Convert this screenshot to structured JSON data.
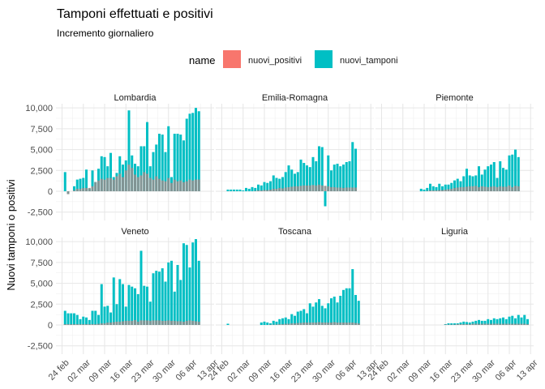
{
  "chart_data": {
    "type": "bar",
    "title": "Tamponi effettuati e positivi",
    "subtitle": "Incremento giornaliero",
    "ylabel": "Nuovi tamponi o positivi",
    "xlabel": "",
    "legend": {
      "title": "name",
      "position": "top",
      "entries": [
        {
          "name": "nuovi_positivi",
          "color": "#F8766D"
        },
        {
          "name": "nuovi_tamponi",
          "color": "#00BFC4"
        }
      ]
    },
    "positive_overlap_color": "#8f8f8f",
    "ylim": [
      -3500,
      10500
    ],
    "y_ticks": [
      -2500,
      0,
      2500,
      5000,
      7500,
      10000
    ],
    "y_tick_labels": [
      "-2,500",
      "0",
      "2,500",
      "5,000",
      "7,500",
      "10,000"
    ],
    "x_start": "2020-02-24",
    "x_ticks": [
      "2020-02-24",
      "2020-03-02",
      "2020-03-09",
      "2020-03-16",
      "2020-03-23",
      "2020-03-30",
      "2020-04-06",
      "2020-04-13"
    ],
    "x_tick_labels": [
      "24 feb",
      "02 mar",
      "09 mar",
      "16 mar",
      "23 mar",
      "30 mar",
      "06 apr",
      "13 apr"
    ],
    "grid": true,
    "facets": [
      {
        "name": "Lombardia",
        "nuovi_tamponi": [
          0,
          2300,
          -300,
          0,
          600,
          1400,
          1500,
          1600,
          2600,
          300,
          2500,
          1100,
          2700,
          4200,
          4100,
          3000,
          4600,
          1700,
          2200,
          4200,
          3200,
          3700,
          9700,
          4300,
          3300,
          3000,
          5400,
          5400,
          8300,
          3000,
          4700,
          5600,
          6900,
          6800,
          4700,
          7800,
          1700,
          6900,
          6900,
          6800,
          6100,
          8700,
          9300,
          9400,
          10000,
          9600
        ],
        "nuovi_positivi": [
          0,
          0,
          -350,
          0,
          100,
          300,
          300,
          400,
          400,
          400,
          600,
          1100,
          1300,
          1500,
          1400,
          1600,
          1600,
          1400,
          1800,
          2100,
          1700,
          2500,
          3200,
          2800,
          2000,
          1700,
          1900,
          2300,
          2100,
          1600,
          1400,
          1800,
          1500,
          1300,
          1200,
          1600,
          1000,
          1400,
          1200,
          1300,
          1100,
          1200,
          1400,
          1300,
          1400,
          1400
        ]
      },
      {
        "name": "Emilia-Romagna",
        "nuovi_tamponi": [
          0,
          0,
          200,
          200,
          200,
          200,
          200,
          100,
          400,
          300,
          500,
          400,
          800,
          700,
          1100,
          1000,
          1200,
          1900,
          1600,
          1500,
          1700,
          2300,
          3100,
          2600,
          2100,
          2300,
          3800,
          3400,
          3100,
          2900,
          4100,
          3600,
          5400,
          5300,
          -1800,
          4300,
          2500,
          3200,
          3300,
          3000,
          3200,
          3500,
          3600,
          5900,
          5100
        ],
        "nuovi_positivi": [
          0,
          0,
          0,
          0,
          0,
          0,
          0,
          0,
          0,
          0,
          0,
          50,
          100,
          100,
          150,
          150,
          200,
          300,
          300,
          400,
          350,
          450,
          500,
          550,
          600,
          600,
          650,
          700,
          700,
          700,
          750,
          700,
          800,
          700,
          650,
          600,
          500,
          500,
          450,
          450,
          400,
          450,
          450,
          450,
          450
        ]
      },
      {
        "name": "Piemonte",
        "nuovi_tamponi": [
          0,
          0,
          0,
          0,
          0,
          0,
          0,
          0,
          0,
          0,
          0,
          0,
          0,
          300,
          200,
          400,
          900,
          600,
          500,
          900,
          600,
          800,
          800,
          1000,
          1300,
          1500,
          1200,
          1800,
          2700,
          1900,
          1800,
          1900,
          3000,
          2000,
          2600,
          3000,
          3200,
          3500,
          1600,
          3600,
          2800,
          2600,
          4300,
          4400,
          5000,
          4100
        ],
        "nuovi_positivi": [
          0,
          0,
          0,
          0,
          0,
          0,
          0,
          0,
          0,
          0,
          0,
          0,
          0,
          0,
          0,
          50,
          100,
          100,
          100,
          150,
          150,
          200,
          250,
          300,
          400,
          450,
          500,
          500,
          550,
          600,
          600,
          650,
          500,
          600,
          550,
          500,
          550,
          600,
          500,
          600,
          550,
          550,
          700,
          500,
          650,
          600
        ]
      },
      {
        "name": "Veneto",
        "nuovi_tamponi": [
          0,
          1700,
          1400,
          1400,
          1400,
          1200,
          700,
          1000,
          900,
          600,
          1700,
          1700,
          1200,
          4900,
          2200,
          2300,
          1500,
          5700,
          2500,
          5500,
          4900,
          2200,
          4800,
          4600,
          4400,
          3700,
          8900,
          4700,
          4600,
          2800,
          6200,
          6500,
          6400,
          6800,
          5200,
          7500,
          7700,
          4000,
          7200,
          5400,
          9800,
          9600,
          6900,
          9900,
          10300,
          7700
        ],
        "nuovi_positivi": [
          0,
          100,
          100,
          100,
          100,
          100,
          100,
          100,
          100,
          100,
          100,
          100,
          150,
          200,
          200,
          300,
          300,
          350,
          400,
          400,
          450,
          500,
          500,
          500,
          600,
          400,
          550,
          550,
          550,
          500,
          550,
          550,
          550,
          500,
          500,
          550,
          500,
          500,
          450,
          450,
          400,
          500,
          550,
          500,
          450,
          400
        ]
      },
      {
        "name": "Toscana",
        "nuovi_tamponi": [
          0,
          0,
          150,
          0,
          0,
          0,
          0,
          0,
          0,
          0,
          0,
          0,
          0,
          300,
          400,
          300,
          200,
          500,
          400,
          700,
          800,
          900,
          700,
          1300,
          1100,
          1600,
          1700,
          1900,
          1400,
          2600,
          2200,
          2700,
          3100,
          2300,
          2000,
          2600,
          3200,
          3400,
          2700,
          3500,
          4200,
          4400,
          4400,
          6700,
          3600,
          2900
        ],
        "nuovi_positivi": [
          0,
          0,
          0,
          0,
          0,
          0,
          0,
          0,
          0,
          0,
          0,
          0,
          0,
          0,
          0,
          0,
          50,
          50,
          50,
          100,
          100,
          150,
          150,
          200,
          200,
          250,
          250,
          300,
          300,
          300,
          300,
          300,
          350,
          300,
          300,
          300,
          300,
          350,
          300,
          300,
          300,
          300,
          300,
          300,
          250,
          200
        ]
      },
      {
        "name": "Liguria",
        "nuovi_tamponi": [
          0,
          0,
          0,
          0,
          0,
          0,
          0,
          0,
          0,
          0,
          0,
          0,
          0,
          0,
          0,
          0,
          0,
          0,
          0,
          0,
          0,
          100,
          200,
          200,
          200,
          200,
          300,
          400,
          350,
          300,
          400,
          500,
          600,
          500,
          500,
          700,
          600,
          800,
          700,
          800,
          900,
          700,
          1000,
          1100,
          800,
          1200,
          900,
          1200,
          700
        ],
        "nuovi_positivi": [
          0,
          0,
          0,
          0,
          0,
          0,
          0,
          0,
          0,
          0,
          0,
          0,
          0,
          0,
          0,
          0,
          0,
          0,
          0,
          0,
          0,
          50,
          50,
          50,
          50,
          100,
          100,
          100,
          100,
          100,
          150,
          150,
          150,
          150,
          150,
          150,
          150,
          150,
          150,
          150,
          150,
          150,
          150,
          150,
          150,
          150,
          150,
          150,
          100
        ]
      }
    ]
  }
}
